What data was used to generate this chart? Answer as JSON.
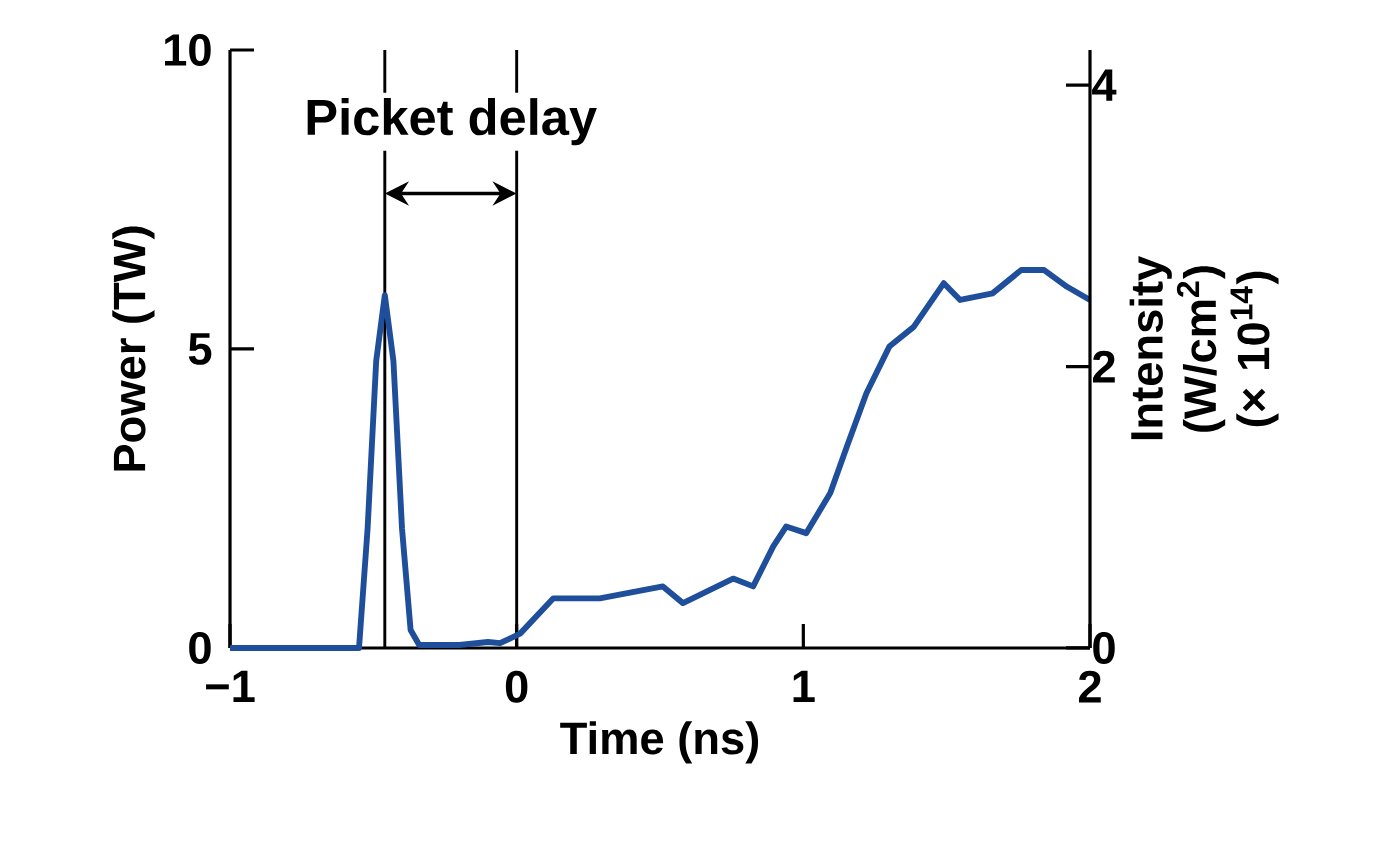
{
  "chart_data": {
    "type": "line",
    "xlabel": "Time (ns)",
    "ylabel": "Power (TW)",
    "y2label": "Intensity (W/cm$^{2}$) (× 10$^{14}$)",
    "xlim": [
      -1,
      2
    ],
    "xticks": [
      {
        "value": -1,
        "label": "−1"
      },
      0,
      1,
      2
    ],
    "ylim": [
      0,
      10
    ],
    "yticks": [
      0,
      5,
      10
    ],
    "y2lim": [
      0,
      4.25
    ],
    "y2ticks": [
      0,
      2,
      4
    ],
    "marker": "none",
    "line_style": "solid",
    "ref_lines": [
      {
        "axis": "x",
        "value": -0.46,
        "color": "#000000"
      },
      {
        "axis": "x",
        "value": 0,
        "color": "#000000"
      }
    ],
    "annotations": [
      "Picket delay"
    ],
    "series": [
      {
        "color": "#1f4e9a",
        "x": [
          -1,
          -0.6,
          -0.55,
          -0.52,
          -0.49,
          -0.46,
          -0.43,
          -0.4,
          -0.37,
          -0.34,
          -0.2,
          -0.1,
          -0.058,
          0.012,
          0.128,
          0.29,
          0.51,
          0.58,
          0.755,
          0.825,
          0.895,
          0.94,
          1.01,
          1.094,
          1.152,
          1.22,
          1.3,
          1.385,
          1.49,
          1.547,
          1.66,
          1.76,
          1.84,
          1.92,
          2.0
        ],
        "values": [
          0,
          0,
          0,
          2,
          4.8,
          5.9,
          4.8,
          2,
          0.3,
          0.05,
          0.05,
          0.1,
          0.08,
          0.24,
          0.83,
          0.83,
          1.03,
          0.75,
          1.16,
          1.03,
          1.7,
          2.03,
          1.92,
          2.59,
          3.37,
          4.26,
          5.04,
          5.37,
          6.1,
          5.82,
          5.93,
          6.32,
          6.32,
          6.04,
          5.82
        ]
      }
    ]
  }
}
